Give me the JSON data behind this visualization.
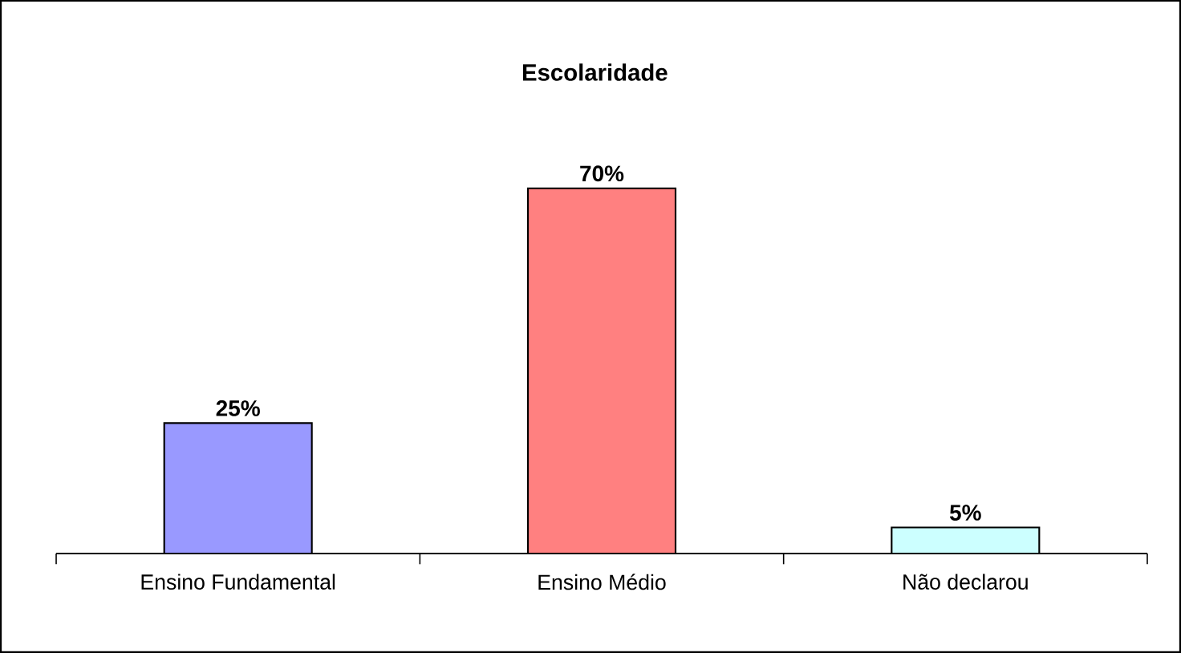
{
  "chart_data": {
    "type": "bar",
    "title": "Escolaridade",
    "categories": [
      "Ensino Fundamental",
      "Ensino Médio",
      "Não declarou"
    ],
    "values": [
      25,
      70,
      5
    ],
    "colors": [
      "#9999ff",
      "#ff8080",
      "#ccffff"
    ],
    "value_labels": [
      "25%",
      "70%",
      "5%"
    ]
  }
}
